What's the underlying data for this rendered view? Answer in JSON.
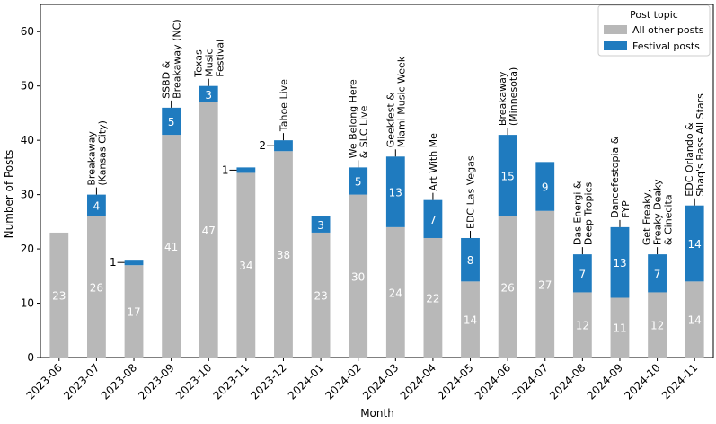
{
  "chart_data": {
    "type": "stacked_bar",
    "x_label": "Month",
    "y_label": "Number of Posts",
    "legend_title": "Post topic",
    "legend_position": "upper right",
    "categories": [
      "2023-06",
      "2023-07",
      "2023-08",
      "2023-09",
      "2023-10",
      "2023-11",
      "2023-12",
      "2024-01",
      "2024-02",
      "2024-03",
      "2024-04",
      "2024-05",
      "2024-06",
      "2024-07",
      "2024-08",
      "2024-09",
      "2024-10",
      "2024-11"
    ],
    "series": [
      {
        "name": "All other posts",
        "color": "#b8b8b8",
        "values": [
          23,
          26,
          17,
          41,
          47,
          34,
          38,
          23,
          30,
          24,
          22,
          14,
          26,
          27,
          12,
          11,
          12,
          14
        ]
      },
      {
        "name": "Festival posts",
        "color": "#1f7bbf",
        "values": [
          null,
          4,
          1,
          5,
          3,
          1,
          2,
          3,
          5,
          13,
          7,
          8,
          15,
          9,
          7,
          13,
          7,
          14
        ]
      }
    ],
    "annotations": [
      null,
      [
        "Breakaway",
        "(Kansas City)"
      ],
      null,
      [
        "SSBD &",
        "Breakaway (NC)"
      ],
      [
        "Texas",
        "Music",
        "Festival"
      ],
      null,
      [
        "Tahoe Live"
      ],
      null,
      [
        "We Belong Here",
        "& SLC Live"
      ],
      [
        "Geekfest &",
        "Miami Music Week"
      ],
      [
        "Art With Me"
      ],
      [
        "EDC Las Vegas"
      ],
      [
        "Breakaway",
        "(Minnesota)"
      ],
      null,
      [
        "Das Energi &",
        "Deep Tropics"
      ],
      [
        "Dancefestopia &",
        "FYP"
      ],
      [
        "Get Freaky,",
        "Freaky Deaky",
        "& Cinecita"
      ],
      [
        "EDC Orlando &",
        "Shaq's Bass All Stars"
      ]
    ],
    "ylim": [
      0,
      65
    ],
    "yticks": [
      0,
      10,
      20,
      30,
      40,
      50,
      60
    ]
  }
}
